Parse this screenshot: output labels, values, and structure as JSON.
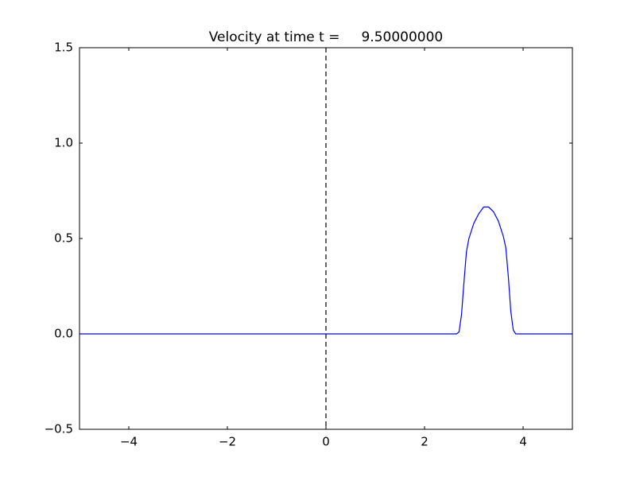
{
  "chart_data": {
    "type": "line",
    "title": "Velocity at time t =     9.50000000",
    "x": [
      -5,
      2.65,
      2.7,
      2.75,
      2.8,
      2.85,
      2.9,
      3.0,
      3.1,
      3.2,
      3.3,
      3.4,
      3.5,
      3.6,
      3.65,
      3.7,
      3.75,
      3.8,
      3.85,
      5
    ],
    "series": [
      {
        "color": "#0000ff",
        "values": [
          0,
          0,
          0.01,
          0.1,
          0.27,
          0.43,
          0.5,
          0.58,
          0.63,
          0.665,
          0.665,
          0.64,
          0.59,
          0.51,
          0.45,
          0.3,
          0.12,
          0.02,
          0,
          0
        ]
      }
    ],
    "vlines": [
      {
        "x": 0,
        "color": "#000000",
        "style": "dashed"
      }
    ],
    "xlim": [
      -5,
      5
    ],
    "xticks": [
      {
        "value": -4,
        "label": "−4"
      },
      {
        "value": -2,
        "label": "−2"
      },
      0,
      2,
      4
    ],
    "ylim": [
      -0.5,
      1.5
    ],
    "yticks": [
      {
        "value": -0.5,
        "label": "−0.5"
      },
      {
        "value": 0,
        "label": "0.0"
      },
      {
        "value": 0.5,
        "label": "0.5"
      },
      {
        "value": 1,
        "label": "1.0"
      },
      {
        "value": 1.5,
        "label": "1.5"
      }
    ],
    "grid": false
  }
}
